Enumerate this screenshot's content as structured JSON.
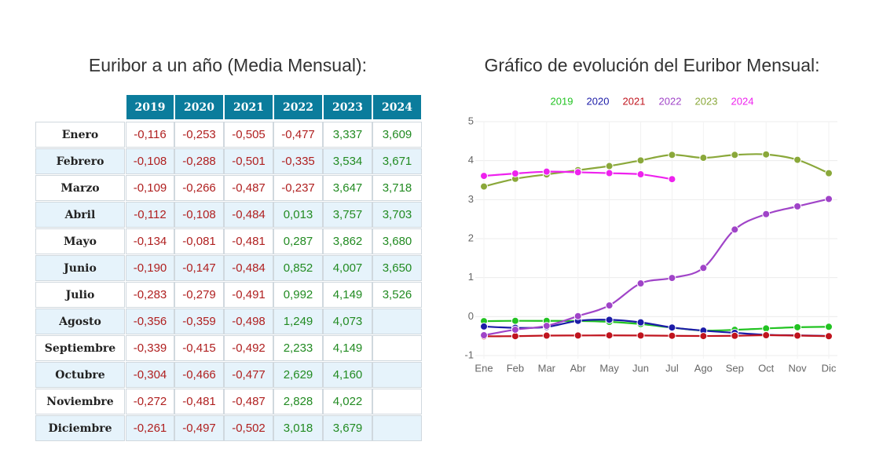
{
  "table": {
    "title": "Euribor a un año (Media Mensual):",
    "columns": [
      "2019",
      "2020",
      "2021",
      "2022",
      "2023",
      "2024"
    ],
    "rows": [
      {
        "label": "Enero",
        "values": [
          "-0,116",
          "-0,253",
          "-0,505",
          "-0,477",
          "3,337",
          "3,609"
        ]
      },
      {
        "label": "Febrero",
        "values": [
          "-0,108",
          "-0,288",
          "-0,501",
          "-0,335",
          "3,534",
          "3,671"
        ]
      },
      {
        "label": "Marzo",
        "values": [
          "-0,109",
          "-0,266",
          "-0,487",
          "-0,237",
          "3,647",
          "3,718"
        ]
      },
      {
        "label": "Abril",
        "values": [
          "-0,112",
          "-0,108",
          "-0,484",
          "0,013",
          "3,757",
          "3,703"
        ]
      },
      {
        "label": "Mayo",
        "values": [
          "-0,134",
          "-0,081",
          "-0,481",
          "0,287",
          "3,862",
          "3,680"
        ]
      },
      {
        "label": "Junio",
        "values": [
          "-0,190",
          "-0,147",
          "-0,484",
          "0,852",
          "4,007",
          "3,650"
        ]
      },
      {
        "label": "Julio",
        "values": [
          "-0,283",
          "-0,279",
          "-0,491",
          "0,992",
          "4,149",
          "3,526"
        ]
      },
      {
        "label": "Agosto",
        "values": [
          "-0,356",
          "-0,359",
          "-0,498",
          "1,249",
          "4,073",
          null
        ]
      },
      {
        "label": "Septiembre",
        "values": [
          "-0,339",
          "-0,415",
          "-0,492",
          "2,233",
          "4,149",
          null
        ]
      },
      {
        "label": "Octubre",
        "values": [
          "-0,304",
          "-0,466",
          "-0,477",
          "2,629",
          "4,160",
          null
        ]
      },
      {
        "label": "Noviembre",
        "values": [
          "-0,272",
          "-0,481",
          "-0,487",
          "2,828",
          "4,022",
          null
        ]
      },
      {
        "label": "Diciembre",
        "values": [
          "-0,261",
          "-0,497",
          "-0,502",
          "3,018",
          "3,679",
          null
        ]
      }
    ]
  },
  "chart_data": {
    "type": "line",
    "title": "Gráfico de evolución del Euribor Mensual:",
    "categories": [
      "Ene",
      "Feb",
      "Mar",
      "Abr",
      "May",
      "Jun",
      "Jul",
      "Ago",
      "Sep",
      "Oct",
      "Nov",
      "Dic"
    ],
    "ylim": [
      -1,
      5
    ],
    "yticks": [
      -1,
      0,
      1,
      2,
      3,
      4,
      5
    ],
    "grid": true,
    "legend": "top",
    "series": [
      {
        "name": "2019",
        "color": "#22c322",
        "values": [
          -0.116,
          -0.108,
          -0.109,
          -0.112,
          -0.134,
          -0.19,
          -0.283,
          -0.356,
          -0.339,
          -0.304,
          -0.272,
          -0.261
        ]
      },
      {
        "name": "2020",
        "color": "#1c1ca8",
        "values": [
          -0.253,
          -0.288,
          -0.266,
          -0.108,
          -0.081,
          -0.147,
          -0.279,
          -0.359,
          -0.415,
          -0.466,
          -0.481,
          -0.497
        ]
      },
      {
        "name": "2021",
        "color": "#c0141e",
        "values": [
          -0.505,
          -0.501,
          -0.487,
          -0.484,
          -0.481,
          -0.484,
          -0.491,
          -0.498,
          -0.492,
          -0.477,
          -0.487,
          -0.502
        ]
      },
      {
        "name": "2022",
        "color": "#a044c8",
        "values": [
          -0.477,
          -0.335,
          -0.237,
          0.013,
          0.287,
          0.852,
          0.992,
          1.249,
          2.233,
          2.629,
          2.828,
          3.018
        ]
      },
      {
        "name": "2023",
        "color": "#8aa83a",
        "values": [
          3.337,
          3.534,
          3.647,
          3.757,
          3.862,
          4.007,
          4.149,
          4.073,
          4.149,
          4.16,
          4.022,
          3.679
        ]
      },
      {
        "name": "2024",
        "color": "#ee22ee",
        "values": [
          3.609,
          3.671,
          3.718,
          3.703,
          3.68,
          3.65,
          3.526,
          null,
          null,
          null,
          null,
          null
        ]
      }
    ]
  }
}
